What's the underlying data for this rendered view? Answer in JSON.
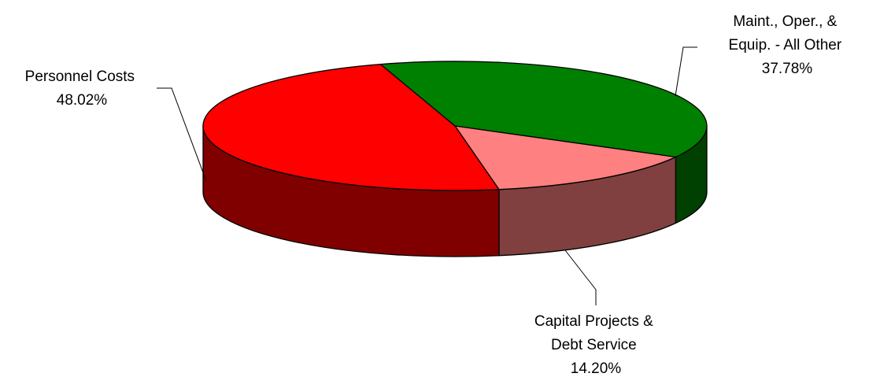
{
  "chart_data": {
    "type": "pie",
    "title": "",
    "slices": [
      {
        "name": "Maint., Oper., & Equip. - All Other",
        "label_lines": [
          "Maint., Oper., &",
          "Equip. - All Other"
        ],
        "value": 37.78,
        "percent_label": "37.78%",
        "color": "#008000",
        "side_color": "#004000"
      },
      {
        "name": "Capital Projects & Debt Service",
        "label_lines": [
          "Capital Projects &",
          "Debt Service"
        ],
        "value": 14.2,
        "percent_label": "14.20%",
        "color": "#FF8080",
        "side_color": "#804040"
      },
      {
        "name": "Personnel Costs",
        "label_lines": [
          "Personnel Costs"
        ],
        "value": 48.02,
        "percent_label": "48.02%",
        "color": "#FF0000",
        "side_color": "#800000"
      }
    ],
    "three_d": true,
    "legend": "none"
  }
}
